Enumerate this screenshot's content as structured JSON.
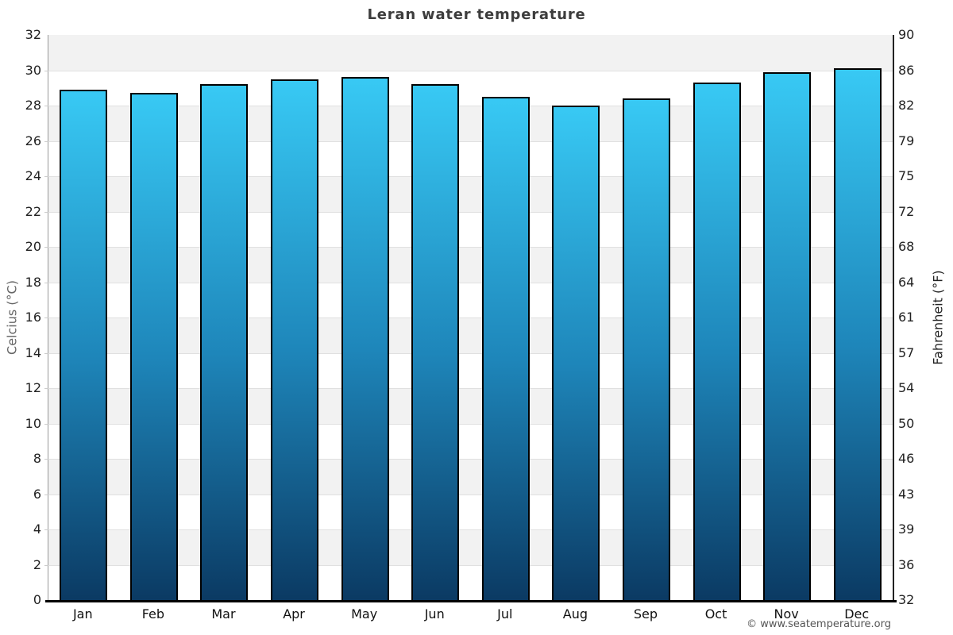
{
  "title": "Leran water temperature",
  "footer": "© www.seatemperature.org",
  "chart_data": {
    "type": "bar",
    "title": "Leran water temperature",
    "categories": [
      "Jan",
      "Feb",
      "Mar",
      "Apr",
      "May",
      "Jun",
      "Jul",
      "Aug",
      "Sep",
      "Oct",
      "Nov",
      "Dec"
    ],
    "values": [
      28.9,
      28.7,
      29.2,
      29.5,
      29.6,
      29.2,
      28.5,
      28.0,
      28.4,
      29.3,
      29.9,
      30.1
    ],
    "unit": "°C",
    "xlabel": "",
    "ylabel_left": "Celcius (°C)",
    "ylabel_right": "Fahrenheit (°F)",
    "ylim": [
      0,
      32
    ],
    "celsius_ticks": [
      32,
      30,
      28,
      26,
      24,
      22,
      20,
      18,
      16,
      14,
      12,
      10,
      8,
      6,
      4,
      2,
      0
    ],
    "fahrenheit_ticks": [
      90,
      86,
      82,
      79,
      75,
      72,
      68,
      64,
      61,
      57,
      54,
      50,
      46,
      43,
      39,
      36,
      32
    ],
    "grid": "alternating horizontal bands every 2°C",
    "legend": "none",
    "colors": {
      "bar_gradient_top": "#38c9f4",
      "bar_gradient_mid": "#1e86ba",
      "bar_gradient_bottom": "#0b3a63",
      "bar_border": "#000000",
      "band_alt": "#f2f2f2",
      "gridline": "#e0e0e0",
      "axis_line": "#000000",
      "title_color": "#3d3d3d",
      "tick_color": "#222222",
      "celsius_label_color": "#666666",
      "fahrenheit_label_color": "#222222",
      "footer_color": "#555555"
    }
  }
}
